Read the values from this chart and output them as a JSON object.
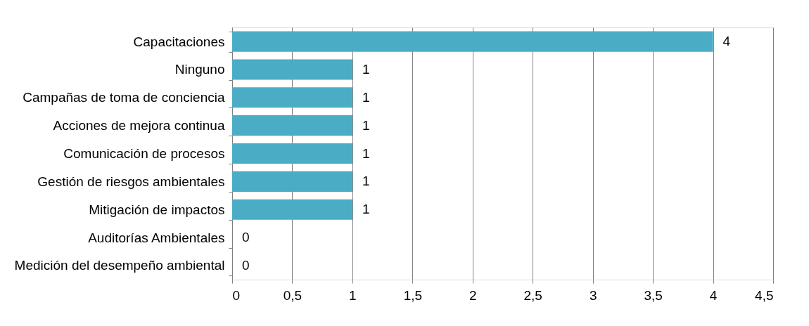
{
  "chart_data": {
    "type": "bar",
    "orientation": "horizontal",
    "categories": [
      "Capacitaciones",
      "Ninguno",
      "Campañas de toma de conciencia",
      "Acciones de mejora continua",
      "Comunicación de procesos",
      "Gestión de riesgos ambientales",
      "Mitigación de impactos",
      "Auditorías Ambientales",
      "Medición del desempeño ambiental"
    ],
    "values": [
      4,
      1,
      1,
      1,
      1,
      1,
      1,
      0,
      0
    ],
    "color": "#4bacc6",
    "xlim": [
      0,
      4.5
    ],
    "xticks": [
      0,
      {
        "value": 0.5,
        "label": "0,5"
      },
      1,
      {
        "value": 1.5,
        "label": "1,5"
      },
      2,
      {
        "value": 2.5,
        "label": "2,5"
      },
      3,
      {
        "value": 3.5,
        "label": "3,5"
      },
      4,
      {
        "value": 4.5,
        "label": "4,5"
      }
    ],
    "grid": "x",
    "data_labels": true
  }
}
